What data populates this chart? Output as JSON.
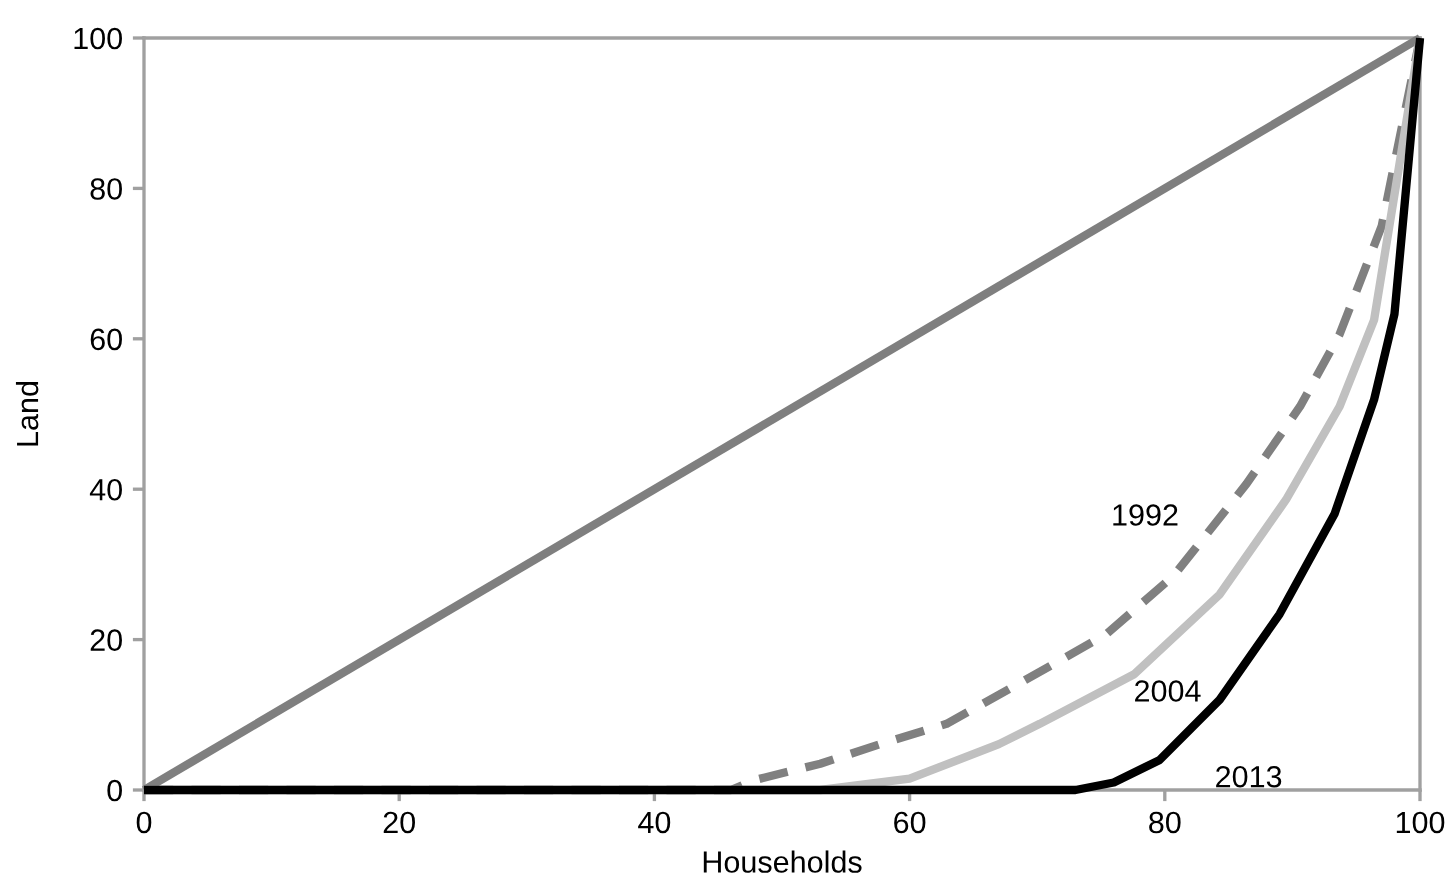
{
  "chart_data": {
    "type": "line",
    "xlabel": "Households",
    "ylabel": "Land",
    "xlim": [
      0,
      100
    ],
    "ylim": [
      0,
      100
    ],
    "xticks": [
      0,
      20,
      40,
      60,
      80,
      100
    ],
    "yticks": [
      0,
      20,
      40,
      60,
      80,
      100
    ],
    "grid": false,
    "legend": false,
    "marker": "none",
    "series": [
      {
        "color": "#7f7f7f",
        "line_style": "solid",
        "x": [
          0,
          100
        ],
        "values": [
          0,
          100
        ]
      },
      {
        "name": "1992",
        "color": "#808080",
        "line_style": "dashed",
        "x": [
          0,
          46,
          47.8,
          53,
          57.7,
          62.9,
          68.2,
          75.4,
          80.7,
          86.4,
          90.6,
          93.7,
          97,
          100
        ],
        "values": [
          0,
          0,
          1.3,
          3.5,
          6.1,
          8.8,
          13.8,
          20.7,
          28.5,
          40.7,
          51,
          60.6,
          75,
          100
        ]
      },
      {
        "name": "2004",
        "color": "#c0c0c0",
        "line_style": "solid",
        "x": [
          0,
          53,
          60,
          67,
          70.2,
          77.6,
          84.3,
          89.5,
          93.7,
          96.4,
          100
        ],
        "values": [
          0,
          0,
          1.5,
          6.1,
          8.8,
          15.4,
          26,
          38.6,
          51,
          62.5,
          100
        ]
      },
      {
        "name": "2013",
        "color": "#000000",
        "line_style": "solid",
        "x": [
          0,
          73,
          76,
          79.6,
          84.3,
          89,
          93.3,
          96.4,
          98,
          100
        ],
        "values": [
          0,
          0,
          1,
          4,
          12,
          23.4,
          36.7,
          51.9,
          63.3,
          100
        ]
      }
    ]
  }
}
